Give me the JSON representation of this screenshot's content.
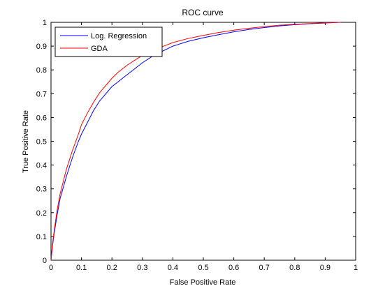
{
  "chart_data": {
    "type": "line",
    "title": "ROC curve",
    "xlabel": "False Positive Rate",
    "ylabel": "True Positive Rate",
    "xlim": [
      0,
      1
    ],
    "ylim": [
      0,
      1
    ],
    "xticks": [
      0,
      0.1,
      0.2,
      0.3,
      0.4,
      0.5,
      0.6,
      0.7,
      0.8,
      0.9,
      1
    ],
    "yticks": [
      0,
      0.1,
      0.2,
      0.3,
      0.4,
      0.5,
      0.6,
      0.7,
      0.8,
      0.9,
      1
    ],
    "xtick_labels": [
      "0",
      "0.1",
      "0.2",
      "0.3",
      "0.4",
      "0.5",
      "0.6",
      "0.7",
      "0.8",
      "0.9",
      "1"
    ],
    "ytick_labels": [
      "0",
      "0.1",
      "0.2",
      "0.3",
      "0.4",
      "0.5",
      "0.6",
      "0.7",
      "0.8",
      "0.9",
      "1"
    ],
    "grid": false,
    "legend_position": "top-left",
    "series": [
      {
        "name": "Log. Regression",
        "color": "#0000ff",
        "x": [
          0,
          0.005,
          0.01,
          0.02,
          0.03,
          0.05,
          0.07,
          0.09,
          0.1,
          0.12,
          0.14,
          0.16,
          0.18,
          0.2,
          0.22,
          0.25,
          0.28,
          0.3,
          0.33,
          0.36,
          0.4,
          0.45,
          0.5,
          0.55,
          0.6,
          0.65,
          0.7,
          0.75,
          0.8,
          0.85,
          0.9,
          0.95
        ],
        "y": [
          0,
          0.06,
          0.11,
          0.19,
          0.26,
          0.35,
          0.43,
          0.5,
          0.53,
          0.58,
          0.63,
          0.67,
          0.7,
          0.73,
          0.75,
          0.78,
          0.81,
          0.83,
          0.855,
          0.875,
          0.9,
          0.92,
          0.935,
          0.948,
          0.96,
          0.97,
          0.978,
          0.985,
          0.99,
          0.994,
          0.997,
          1.0
        ]
      },
      {
        "name": "GDA",
        "color": "#ff0000",
        "x": [
          0,
          0.005,
          0.01,
          0.02,
          0.03,
          0.05,
          0.07,
          0.09,
          0.1,
          0.12,
          0.14,
          0.16,
          0.18,
          0.2,
          0.22,
          0.25,
          0.28,
          0.3,
          0.33,
          0.36,
          0.4,
          0.45,
          0.5,
          0.55,
          0.6,
          0.65,
          0.7,
          0.75,
          0.8,
          0.85,
          0.9,
          0.95
        ],
        "y": [
          0,
          0.07,
          0.12,
          0.21,
          0.28,
          0.38,
          0.46,
          0.53,
          0.57,
          0.62,
          0.665,
          0.705,
          0.735,
          0.765,
          0.79,
          0.82,
          0.845,
          0.86,
          0.88,
          0.895,
          0.915,
          0.932,
          0.945,
          0.957,
          0.967,
          0.975,
          0.982,
          0.988,
          0.992,
          0.995,
          0.998,
          1.0
        ]
      }
    ]
  }
}
